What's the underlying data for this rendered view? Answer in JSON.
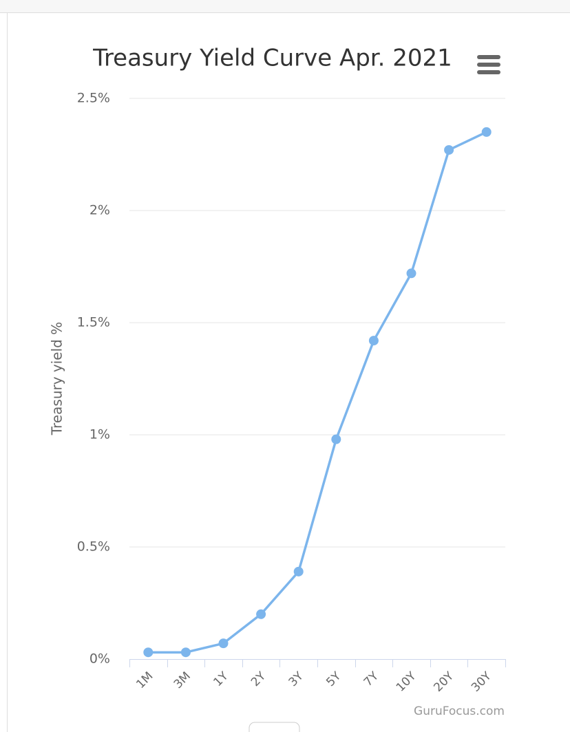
{
  "chart_data": {
    "type": "line",
    "title": "Treasury Yield Curve Apr. 2021",
    "y_axis_label": "Treasury yield %",
    "credit": "GuruFocus.com",
    "categories": [
      "1M",
      "3M",
      "1Y",
      "2Y",
      "3Y",
      "5Y",
      "7Y",
      "10Y",
      "20Y",
      "30Y"
    ],
    "values": [
      0.03,
      0.03,
      0.07,
      0.2,
      0.39,
      0.98,
      1.42,
      1.72,
      2.27,
      2.35
    ],
    "color": "#7cb5ec",
    "ylim": [
      0,
      2.5
    ],
    "yticks": [
      {
        "value": 0,
        "label": "0%"
      },
      {
        "value": 0.5,
        "label": "0.5%"
      },
      {
        "value": 1,
        "label": "1%"
      },
      {
        "value": 1.5,
        "label": "1.5%"
      },
      {
        "value": 2,
        "label": "2%"
      },
      {
        "value": 2.5,
        "label": "2.5%"
      }
    ],
    "grid": true
  }
}
